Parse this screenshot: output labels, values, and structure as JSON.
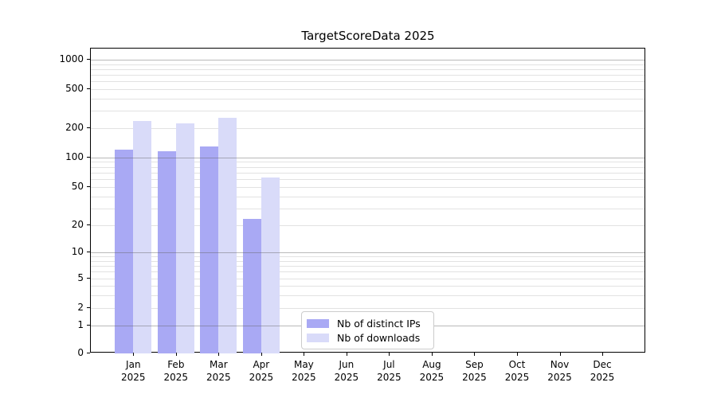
{
  "title": "TargetScoreData 2025",
  "colors": {
    "distinct_ips": "#a9a9f4",
    "downloads": "#d9dbf9",
    "axis": "#000000",
    "grid_major": "#b4b4b4",
    "grid_minor": "#e6e6e6",
    "background": "#ffffff"
  },
  "legend": {
    "items": [
      {
        "label": "Nb of distinct IPs",
        "color": "#a9a9f4"
      },
      {
        "label": "Nb of downloads",
        "color": "#d9dbf9"
      }
    ]
  },
  "x_axis": {
    "months": [
      "Jan",
      "Feb",
      "Mar",
      "Apr",
      "May",
      "Jun",
      "Jul",
      "Aug",
      "Sep",
      "Oct",
      "Nov",
      "Dec"
    ],
    "year": "2025"
  },
  "y_axis": {
    "tick_labels": [
      "0",
      "1",
      "2",
      "5",
      "10",
      "20",
      "50",
      "100",
      "200",
      "500",
      "1000"
    ]
  },
  "chart_data": {
    "type": "bar",
    "title": "TargetScoreData 2025",
    "categories": [
      "Jan 2025",
      "Feb 2025",
      "Mar 2025",
      "Apr 2025",
      "May 2025",
      "Jun 2025",
      "Jul 2025",
      "Aug 2025",
      "Sep 2025",
      "Oct 2025",
      "Nov 2025",
      "Dec 2025"
    ],
    "series": [
      {
        "name": "Nb of distinct IPs",
        "color": "#a9a9f4",
        "values": [
          120,
          115,
          130,
          23,
          0,
          0,
          0,
          0,
          0,
          0,
          0,
          0
        ]
      },
      {
        "name": "Nb of downloads",
        "color": "#d9dbf9",
        "values": [
          235,
          225,
          255,
          63,
          0,
          0,
          0,
          0,
          0,
          0,
          0,
          0
        ]
      }
    ],
    "xlabel": "",
    "ylabel": "",
    "yscale": "symlog",
    "y_ticks": [
      0,
      1,
      2,
      5,
      10,
      20,
      50,
      100,
      200,
      500,
      1000
    ],
    "ylim": [
      0,
      1300
    ],
    "grid": true,
    "legend_position": "lower center inside axes"
  }
}
